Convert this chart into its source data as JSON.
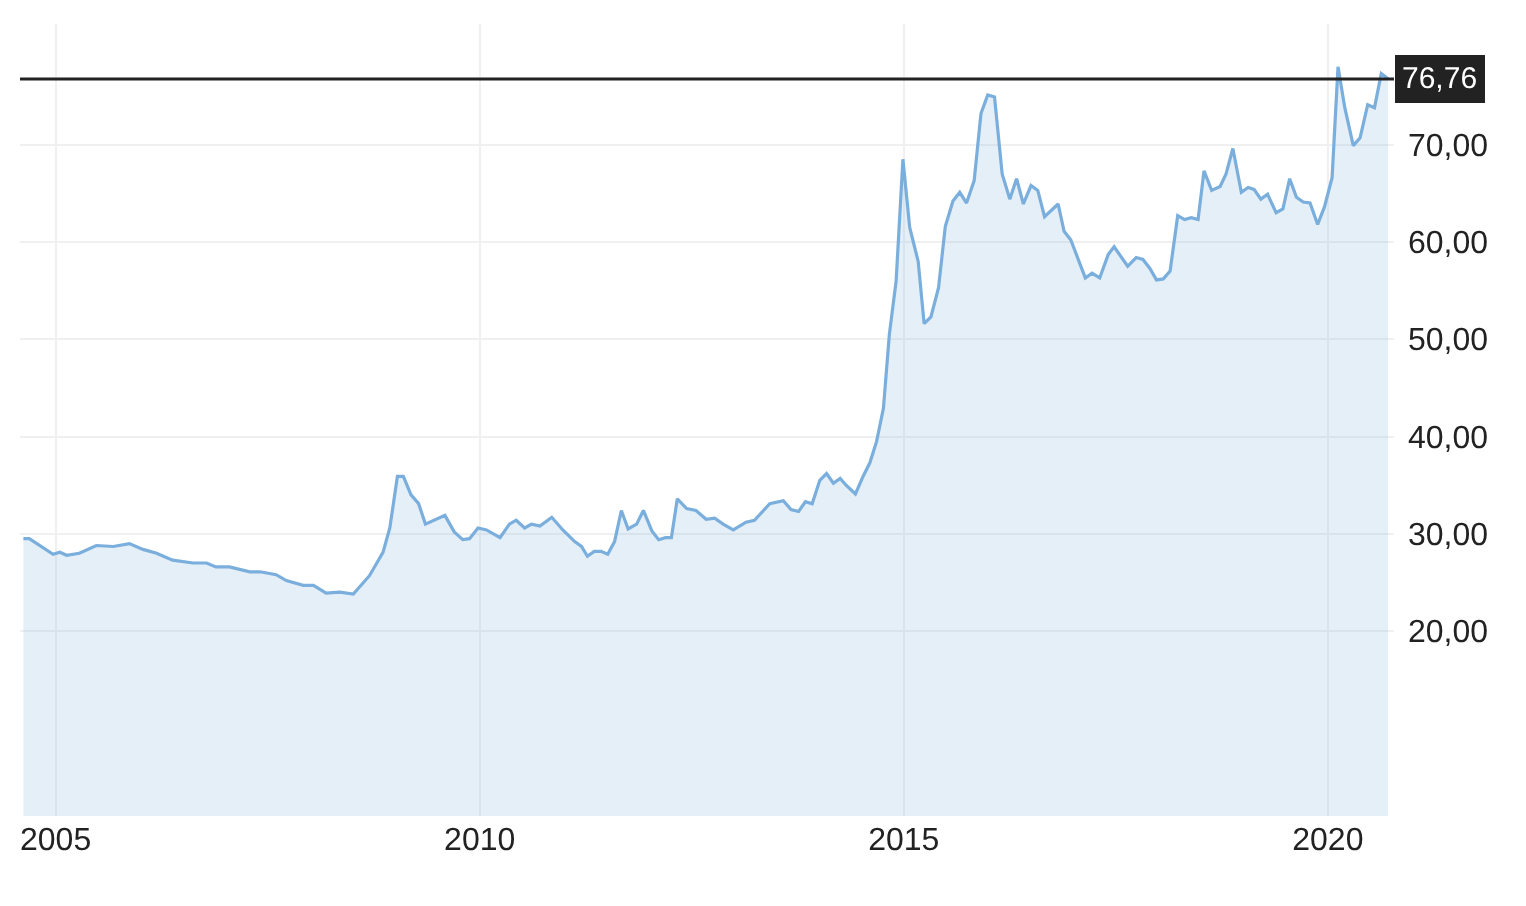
{
  "chart_data": {
    "type": "area",
    "x": [
      2004.62,
      2004.69,
      2004.97,
      2005.05,
      2005.13,
      2005.28,
      2005.48,
      2005.68,
      2005.87,
      2006.03,
      2006.19,
      2006.38,
      2006.62,
      2006.78,
      2006.89,
      2007.05,
      2007.29,
      2007.41,
      2007.6,
      2007.72,
      2007.92,
      2008.04,
      2008.19,
      2008.35,
      2008.51,
      2008.7,
      2008.86,
      2008.94,
      2009.03,
      2009.1,
      2009.19,
      2009.28,
      2009.36,
      2009.59,
      2009.7,
      2009.8,
      2009.88,
      2009.98,
      2010.08,
      2010.24,
      2010.35,
      2010.43,
      2010.53,
      2010.61,
      2010.71,
      2010.85,
      2010.98,
      2011.12,
      2011.2,
      2011.27,
      2011.35,
      2011.43,
      2011.51,
      2011.59,
      2011.67,
      2011.75,
      2011.85,
      2011.93,
      2012.03,
      2012.11,
      2012.19,
      2012.26,
      2012.33,
      2012.44,
      2012.55,
      2012.67,
      2012.77,
      2012.87,
      2012.99,
      2013.14,
      2013.24,
      2013.42,
      2013.58,
      2013.67,
      2013.76,
      2013.84,
      2013.92,
      2014.01,
      2014.09,
      2014.17,
      2014.25,
      2014.32,
      2014.43,
      2014.52,
      2014.6,
      2014.68,
      2014.76,
      2014.83,
      2014.91,
      2014.99,
      2015.07,
      2015.17,
      2015.24,
      2015.32,
      2015.41,
      2015.49,
      2015.58,
      2015.66,
      2015.74,
      2015.83,
      2015.91,
      2015.99,
      2016.07,
      2016.16,
      2016.25,
      2016.33,
      2016.41,
      2016.5,
      2016.58,
      2016.66,
      2016.82,
      2016.89,
      2016.97,
      2017.14,
      2017.22,
      2017.31,
      2017.41,
      2017.48,
      2017.64,
      2017.74,
      2017.82,
      2017.9,
      2017.98,
      2018.06,
      2018.14,
      2018.23,
      2018.31,
      2018.39,
      2018.47,
      2018.54,
      2018.63,
      2018.73,
      2018.8,
      2018.88,
      2018.98,
      2019.06,
      2019.13,
      2019.21,
      2019.29,
      2019.39,
      2019.47,
      2019.55,
      2019.63,
      2019.71,
      2019.79,
      2019.88,
      2019.96,
      2020.05,
      2020.12,
      2020.2,
      2020.3,
      2020.38,
      2020.47,
      2020.55,
      2020.63,
      2020.71
    ],
    "series": [
      {
        "color": "#7aaedc",
        "values": [
          29.5,
          29.5,
          27.9,
          28.1,
          27.8,
          28.0,
          28.8,
          28.7,
          29.0,
          28.4,
          28.0,
          27.3,
          27.0,
          27.0,
          26.6,
          26.6,
          26.1,
          26.1,
          25.8,
          25.2,
          24.7,
          24.7,
          23.9,
          24.0,
          23.8,
          25.7,
          28.1,
          30.6,
          35.9,
          35.9,
          34.0,
          33.1,
          31.0,
          31.9,
          30.2,
          29.4,
          29.5,
          30.6,
          30.4,
          29.6,
          31.0,
          31.4,
          30.6,
          31.0,
          30.8,
          31.7,
          30.4,
          29.2,
          28.7,
          27.7,
          28.2,
          28.2,
          27.9,
          29.2,
          32.4,
          30.5,
          31.0,
          32.4,
          30.3,
          29.4,
          29.6,
          29.6,
          33.6,
          32.6,
          32.4,
          31.5,
          31.6,
          31.0,
          30.4,
          31.2,
          31.4,
          33.1,
          33.4,
          32.5,
          32.3,
          33.3,
          33.1,
          35.5,
          36.2,
          35.2,
          35.7,
          35.0,
          34.1,
          35.9,
          37.3,
          39.5,
          42.9,
          50.5,
          56.0,
          68.5,
          61.5,
          58.0,
          51.6,
          52.3,
          55.3,
          61.6,
          64.2,
          65.1,
          64.0,
          66.3,
          73.2,
          75.1,
          74.9,
          67.0,
          64.4,
          66.5,
          63.9,
          65.8,
          65.3,
          62.6,
          63.9,
          61.1,
          60.2,
          56.3,
          56.8,
          56.3,
          58.7,
          59.5,
          57.5,
          58.4,
          58.2,
          57.3,
          56.1,
          56.2,
          57.0,
          62.7,
          62.3,
          62.5,
          62.3,
          67.3,
          65.3,
          65.7,
          67.0,
          69.6,
          65.1,
          65.6,
          65.4,
          64.4,
          64.9,
          63.0,
          63.4,
          66.5,
          64.6,
          64.1,
          64.0,
          61.8,
          63.6,
          66.6,
          78.0,
          73.8,
          69.9,
          70.7,
          74.1,
          73.8,
          77.3,
          76.76
        ]
      }
    ],
    "xlim": [
      2004.58,
      2020.78
    ],
    "xticks": [
      2005,
      2010,
      2015,
      2020
    ],
    "ylim": [
      1,
      82.4
    ],
    "yticks": [
      {
        "value": 20,
        "label": "20,00"
      },
      {
        "value": 30,
        "label": "30,00"
      },
      {
        "value": 40,
        "label": "40,00"
      },
      {
        "value": 50,
        "label": "50,00"
      },
      {
        "value": 60,
        "label": "60,00"
      },
      {
        "value": 70,
        "label": "70,00"
      }
    ],
    "ref_lines": [
      {
        "axis": "y",
        "value": 76.76,
        "label": "76,76",
        "color": "#222222"
      }
    ],
    "grid": true
  }
}
